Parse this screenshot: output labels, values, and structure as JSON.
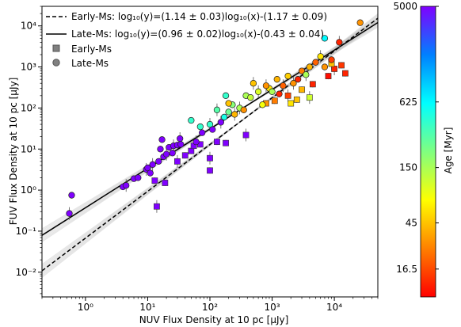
{
  "chart_data": {
    "type": "scatter",
    "title": "",
    "xlabel": "NUV Flux Density at 10 pc [μJy]",
    "ylabel": "FUV Flux Density at 10 pc [μJy]",
    "xscale": "log",
    "yscale": "log",
    "xlim": [
      0.2,
      50000
    ],
    "ylim": [
      0.0025,
      30000
    ],
    "grid": false,
    "legend_placement": "top-left",
    "x_ticks": [
      {
        "value": 1,
        "label": "10⁰"
      },
      {
        "value": 10,
        "label": "10¹"
      },
      {
        "value": 100,
        "label": "10²"
      },
      {
        "value": 1000,
        "label": "10³"
      },
      {
        "value": 10000,
        "label": "10⁴"
      }
    ],
    "y_ticks": [
      {
        "value": 0.01,
        "label": "10⁻²"
      },
      {
        "value": 0.1,
        "label": "10⁻¹"
      },
      {
        "value": 1,
        "label": "10⁰"
      },
      {
        "value": 10,
        "label": "10¹"
      },
      {
        "value": 100,
        "label": "10²"
      },
      {
        "value": 1000,
        "label": "10³"
      },
      {
        "value": 10000,
        "label": "10⁴"
      }
    ],
    "fits": [
      {
        "name": "Early-Ms: log₁₀(y)=(1.14 ± 0.03)log₁₀(x)-(1.17 ± 0.09)",
        "slope": 1.14,
        "intercept": -1.17,
        "style": "dashed",
        "color": "#000000"
      },
      {
        "name": "Late-Ms: log₁₀(y)=(0.96 ± 0.02)log₁₀(x)-(0.43 ± 0.04)",
        "slope": 0.96,
        "intercept": -0.43,
        "style": "solid",
        "color": "#000000"
      }
    ],
    "marker_legend": [
      {
        "name": "Early-Ms",
        "marker": "square",
        "color": "#808080"
      },
      {
        "name": "Late-Ms",
        "marker": "circle",
        "color": "#808080"
      }
    ],
    "colorbar": {
      "label": "Age [Myr]",
      "scale": "log",
      "range": [
        9,
        5000
      ],
      "ticks": [
        {
          "value": 5000,
          "label": "5000"
        },
        {
          "value": 625,
          "label": "625"
        },
        {
          "value": 150,
          "label": "150"
        },
        {
          "value": 45,
          "label": "45"
        },
        {
          "value": 16.5,
          "label": "16.5"
        }
      ],
      "colormap": [
        "#ff0000",
        "#ff8000",
        "#ffff00",
        "#80ff80",
        "#00ffff",
        "#0080ff",
        "#8000ff"
      ]
    },
    "series": [
      {
        "name": "Early-Ms",
        "marker": "square",
        "points": [
          {
            "x": 14,
            "y": 0.4,
            "age": 5000
          },
          {
            "x": 19,
            "y": 1.5,
            "age": 5000
          },
          {
            "x": 13,
            "y": 1.7,
            "age": 5000
          },
          {
            "x": 30,
            "y": 5,
            "age": 5000
          },
          {
            "x": 40,
            "y": 7,
            "age": 5000
          },
          {
            "x": 50,
            "y": 9,
            "age": 5000
          },
          {
            "x": 55,
            "y": 12,
            "age": 5000
          },
          {
            "x": 70,
            "y": 13,
            "age": 5000
          },
          {
            "x": 100,
            "y": 3,
            "age": 5000
          },
          {
            "x": 100,
            "y": 6,
            "age": 5000
          },
          {
            "x": 130,
            "y": 15,
            "age": 5000
          },
          {
            "x": 180,
            "y": 14,
            "age": 5000
          },
          {
            "x": 380,
            "y": 22,
            "age": 5000
          },
          {
            "x": 800,
            "y": 130,
            "age": 30
          },
          {
            "x": 1100,
            "y": 150,
            "age": 25
          },
          {
            "x": 1800,
            "y": 200,
            "age": 15
          },
          {
            "x": 2000,
            "y": 130,
            "age": 60
          },
          {
            "x": 3000,
            "y": 280,
            "age": 40
          },
          {
            "x": 4000,
            "y": 180,
            "age": 110
          },
          {
            "x": 4500,
            "y": 380,
            "age": 12
          },
          {
            "x": 8000,
            "y": 600,
            "age": 10
          },
          {
            "x": 10000,
            "y": 900,
            "age": 12
          },
          {
            "x": 13000,
            "y": 1100,
            "age": 14
          },
          {
            "x": 15000,
            "y": 700,
            "age": 12
          },
          {
            "x": 9000,
            "y": 1200,
            "age": 45
          },
          {
            "x": 2500,
            "y": 160,
            "age": 45
          }
        ]
      },
      {
        "name": "Late-Ms",
        "marker": "circle",
        "points": [
          {
            "x": 0.55,
            "y": 0.27,
            "age": 5000
          },
          {
            "x": 0.6,
            "y": 0.75,
            "age": 5000
          },
          {
            "x": 4,
            "y": 1.2,
            "age": 5000
          },
          {
            "x": 4.5,
            "y": 1.3,
            "age": 5000
          },
          {
            "x": 6,
            "y": 1.9,
            "age": 5000
          },
          {
            "x": 7,
            "y": 2.0,
            "age": 5000
          },
          {
            "x": 9.5,
            "y": 3.2,
            "age": 5000
          },
          {
            "x": 10,
            "y": 3.5,
            "age": 5000
          },
          {
            "x": 11,
            "y": 2.6,
            "age": 5000
          },
          {
            "x": 12,
            "y": 4.2,
            "age": 5000
          },
          {
            "x": 15,
            "y": 5,
            "age": 5000
          },
          {
            "x": 18,
            "y": 6.5,
            "age": 5000
          },
          {
            "x": 20,
            "y": 7.5,
            "age": 5000
          },
          {
            "x": 16,
            "y": 10,
            "age": 5000
          },
          {
            "x": 22,
            "y": 11,
            "age": 5000
          },
          {
            "x": 26,
            "y": 12,
            "age": 5000
          },
          {
            "x": 30,
            "y": 12.5,
            "age": 5000
          },
          {
            "x": 25,
            "y": 8,
            "age": 5000
          },
          {
            "x": 33,
            "y": 18,
            "age": 5000
          },
          {
            "x": 34,
            "y": 13,
            "age": 5000
          },
          {
            "x": 17,
            "y": 17,
            "age": 5000
          },
          {
            "x": 60,
            "y": 15,
            "age": 5000
          },
          {
            "x": 75,
            "y": 25,
            "age": 5000
          },
          {
            "x": 110,
            "y": 30,
            "age": 5000
          },
          {
            "x": 150,
            "y": 45,
            "age": 5000
          },
          {
            "x": 50,
            "y": 50,
            "age": 400
          },
          {
            "x": 70,
            "y": 35,
            "age": 400
          },
          {
            "x": 100,
            "y": 40,
            "age": 400
          },
          {
            "x": 180,
            "y": 200,
            "age": 400
          },
          {
            "x": 170,
            "y": 60,
            "age": 500
          },
          {
            "x": 130,
            "y": 90,
            "age": 300
          },
          {
            "x": 200,
            "y": 80,
            "age": 250
          },
          {
            "x": 230,
            "y": 120,
            "age": 200
          },
          {
            "x": 300,
            "y": 100,
            "age": 150
          },
          {
            "x": 380,
            "y": 200,
            "age": 150
          },
          {
            "x": 200,
            "y": 130,
            "age": 45
          },
          {
            "x": 250,
            "y": 70,
            "age": 40
          },
          {
            "x": 350,
            "y": 90,
            "age": 30
          },
          {
            "x": 450,
            "y": 180,
            "age": 120
          },
          {
            "x": 600,
            "y": 250,
            "age": 100
          },
          {
            "x": 700,
            "y": 120,
            "age": 80
          },
          {
            "x": 900,
            "y": 300,
            "age": 60
          },
          {
            "x": 800,
            "y": 350,
            "age": 30
          },
          {
            "x": 1000,
            "y": 250,
            "age": 150
          },
          {
            "x": 1200,
            "y": 500,
            "age": 40
          },
          {
            "x": 1500,
            "y": 350,
            "age": 20
          },
          {
            "x": 1300,
            "y": 220,
            "age": 12
          },
          {
            "x": 1800,
            "y": 600,
            "age": 50
          },
          {
            "x": 2200,
            "y": 400,
            "age": 30
          },
          {
            "x": 2600,
            "y": 500,
            "age": 12
          },
          {
            "x": 3000,
            "y": 800,
            "age": 25
          },
          {
            "x": 3500,
            "y": 650,
            "age": 150
          },
          {
            "x": 4000,
            "y": 1000,
            "age": 40
          },
          {
            "x": 5000,
            "y": 1300,
            "age": 20
          },
          {
            "x": 6000,
            "y": 1800,
            "age": 60
          },
          {
            "x": 7000,
            "y": 1000,
            "age": 30
          },
          {
            "x": 7000,
            "y": 5000,
            "age": 625
          },
          {
            "x": 12000,
            "y": 4000,
            "age": 12
          },
          {
            "x": 26000,
            "y": 12000,
            "age": 30
          },
          {
            "x": 9000,
            "y": 1500,
            "age": 15
          },
          {
            "x": 500,
            "y": 400,
            "age": 45
          }
        ]
      }
    ]
  }
}
